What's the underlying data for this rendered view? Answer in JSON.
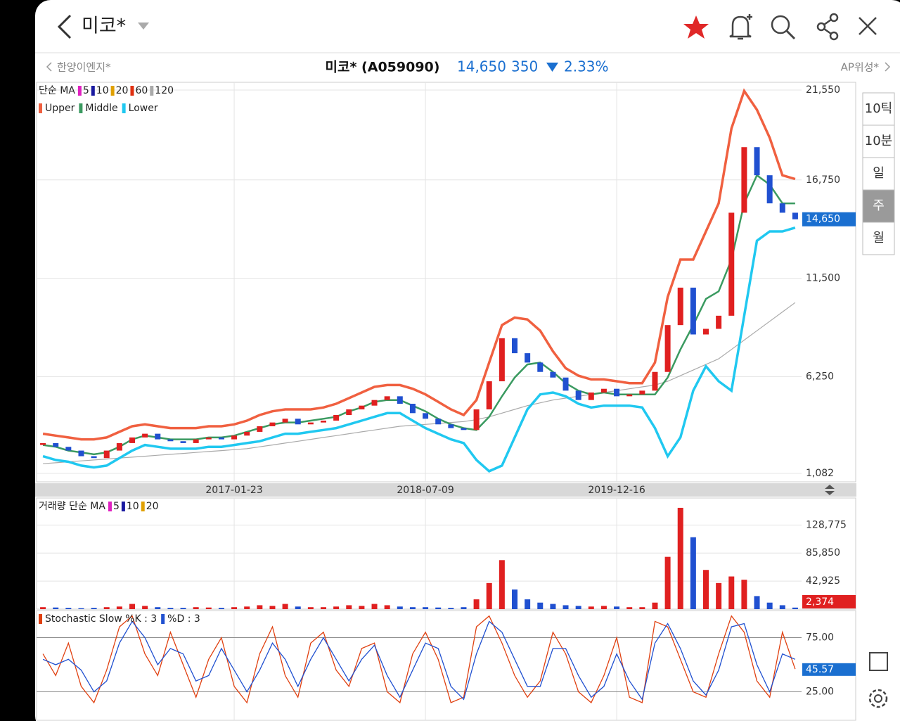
{
  "header": {
    "title": "미코*"
  },
  "quote": {
    "prev": "한양이엔지*",
    "name": "미코* (A059090)",
    "price": "14,650",
    "change": "350",
    "change_pct": "2.33%",
    "next": "AP위성*"
  },
  "periods": [
    "10틱",
    "10분",
    "일",
    "주",
    "월"
  ],
  "price_chart": {
    "type": "candlestick",
    "legend_ma": {
      "label": "단순 MA",
      "items": [
        {
          "name": "5",
          "color": "#e020c0"
        },
        {
          "name": "10",
          "color": "#1a1aa0"
        },
        {
          "name": "20",
          "color": "#e0a000"
        },
        {
          "name": "60",
          "color": "#e03010"
        },
        {
          "name": "120",
          "color": "#aaaaaa"
        }
      ]
    },
    "categories": [
      null,
      null,
      null,
      null,
      null,
      null,
      null,
      null,
      null,
      null,
      null,
      null,
      null,
      null,
      null,
      "2017-01-23",
      null,
      null,
      null,
      null,
      null,
      null,
      null,
      null,
      null,
      null,
      null,
      null,
      null,
      null,
      "2018-07-09",
      null,
      null,
      null,
      null,
      null,
      null,
      null,
      null,
      null,
      null,
      null,
      null,
      null,
      null,
      "2019-12-16",
      null,
      null,
      null,
      null,
      null,
      null,
      null,
      null,
      null,
      null,
      null,
      null,
      null,
      null
    ],
    "opens": [
      2600,
      2700,
      2500,
      2300,
      2000,
      1900,
      2300,
      2700,
      3000,
      3200,
      2900,
      2800,
      2700,
      2900,
      3000,
      2900,
      3100,
      3300,
      3600,
      3800,
      4000,
      3700,
      3800,
      3900,
      4200,
      4500,
      4700,
      5000,
      5200,
      4800,
      4300,
      4000,
      3700,
      3500,
      3400,
      4500,
      6000,
      8300,
      7500,
      7000,
      6500,
      6200,
      5500,
      5000,
      5400,
      5600,
      5200,
      5300,
      5500,
      6500,
      9000,
      11000,
      8500,
      8800,
      9500,
      15000,
      18500,
      17000,
      15500,
      15000
    ],
    "closes": [
      2700,
      2500,
      2300,
      2000,
      1900,
      2300,
      2700,
      3000,
      3200,
      2900,
      2800,
      2700,
      2900,
      3000,
      2900,
      3100,
      3300,
      3600,
      3800,
      4000,
      3700,
      3800,
      3900,
      4200,
      4500,
      4700,
      5000,
      5200,
      4800,
      4300,
      4000,
      3700,
      3500,
      3400,
      4500,
      6000,
      8300,
      7500,
      7000,
      6500,
      6200,
      5500,
      5000,
      5400,
      5600,
      5200,
      5300,
      5500,
      6500,
      9000,
      11000,
      8500,
      8800,
      9500,
      15000,
      18500,
      17000,
      15500,
      15000,
      14650
    ],
    "up_color": "#e02020",
    "down_color": "#2050d0",
    "series": [
      {
        "name": "Upper",
        "color": "#f06040",
        "values": [
          3200,
          3100,
          3000,
          2900,
          2900,
          3000,
          3300,
          3600,
          3700,
          3600,
          3500,
          3500,
          3500,
          3600,
          3600,
          3700,
          3900,
          4200,
          4400,
          4500,
          4500,
          4500,
          4600,
          4800,
          5100,
          5400,
          5700,
          5800,
          5800,
          5600,
          5300,
          4900,
          4500,
          4200,
          5000,
          7000,
          9000,
          9400,
          9300,
          8700,
          7600,
          6700,
          6300,
          6100,
          6100,
          6000,
          5900,
          5900,
          7000,
          10500,
          12500,
          12500,
          14000,
          15500,
          19500,
          21500,
          20500,
          19000,
          17000,
          16800
        ]
      },
      {
        "name": "Middle",
        "color": "#3a9a60",
        "values": [
          2600,
          2500,
          2300,
          2200,
          2100,
          2200,
          2500,
          2900,
          3100,
          3000,
          2900,
          2900,
          2900,
          3000,
          3000,
          3100,
          3300,
          3500,
          3700,
          3800,
          3800,
          3900,
          4000,
          4100,
          4400,
          4600,
          4900,
          5000,
          5000,
          4700,
          4400,
          4000,
          3700,
          3500,
          3400,
          4100,
          5200,
          6200,
          6900,
          7000,
          6500,
          5900,
          5500,
          5300,
          5400,
          5300,
          5300,
          5300,
          5300,
          6200,
          7700,
          9000,
          10400,
          10800,
          12500,
          15500,
          17000,
          16500,
          15500,
          15500
        ]
      },
      {
        "name": "Lower",
        "color": "#20c8f0",
        "values": [
          2000,
          1800,
          1700,
          1500,
          1400,
          1500,
          1900,
          2300,
          2600,
          2500,
          2400,
          2400,
          2400,
          2500,
          2500,
          2600,
          2700,
          2800,
          3000,
          3200,
          3200,
          3300,
          3400,
          3500,
          3700,
          3900,
          4100,
          4300,
          4300,
          3900,
          3500,
          3200,
          2900,
          2700,
          1800,
          1200,
          1500,
          3000,
          4500,
          5300,
          5400,
          5200,
          4800,
          4600,
          4700,
          4700,
          4700,
          4600,
          3500,
          2000,
          3000,
          5500,
          6800,
          6000,
          5500,
          9500,
          13500,
          14000,
          14000,
          14200
        ]
      }
    ],
    "ma120": [
      1600,
      1650,
      1700,
      1750,
      1800,
      1850,
      1900,
      1950,
      2000,
      2050,
      2100,
      2150,
      2200,
      2250,
      2300,
      2350,
      2400,
      2500,
      2600,
      2700,
      2800,
      2900,
      3000,
      3100,
      3200,
      3300,
      3400,
      3500,
      3600,
      3650,
      3700,
      3750,
      3800,
      3850,
      3950,
      4100,
      4300,
      4500,
      4700,
      4850,
      5000,
      5100,
      5200,
      5300,
      5400,
      5500,
      5600,
      5700,
      5800,
      6000,
      6300,
      6600,
      6900,
      7200,
      7700,
      8200,
      8700,
      9200,
      9700,
      10200
    ],
    "ylim": [
      1082,
      21550
    ],
    "yticks": [
      {
        "value": 21550,
        "label": "21,550"
      },
      {
        "value": 16750,
        "label": "16,750"
      },
      {
        "value": 11500,
        "label": "11,500"
      },
      {
        "value": 6250,
        "label": "6,250"
      },
      {
        "value": 1082,
        "label": "1,082"
      }
    ],
    "last": {
      "value": 14650,
      "label": "14,650"
    }
  },
  "volume_chart": {
    "type": "bar",
    "legend_ma": {
      "label": "거래량 단순 MA",
      "items": [
        {
          "name": "5",
          "color": "#e020c0"
        },
        {
          "name": "10",
          "color": "#1a1aa0"
        },
        {
          "name": "20",
          "color": "#e0a000"
        }
      ]
    },
    "values": [
      3000,
      2500,
      2000,
      1500,
      2000,
      3000,
      4000,
      8000,
      5000,
      3000,
      2000,
      2000,
      3000,
      2500,
      2000,
      3000,
      4000,
      6000,
      5000,
      8000,
      4000,
      3000,
      3000,
      4000,
      6000,
      5000,
      8000,
      6000,
      4000,
      3000,
      3000,
      2500,
      2000,
      3000,
      15000,
      40000,
      75000,
      30000,
      15000,
      10000,
      8000,
      6000,
      5000,
      4000,
      5000,
      4000,
      3000,
      3000,
      10000,
      80000,
      155000,
      110000,
      60000,
      40000,
      50000,
      45000,
      20000,
      10000,
      6000,
      2374
    ],
    "ylim": [
      0,
      170000
    ],
    "yticks": [
      {
        "value": 128775,
        "label": "128,775"
      },
      {
        "value": 85850,
        "label": "85,850"
      },
      {
        "value": 42925,
        "label": "42,925"
      }
    ],
    "last": {
      "value": 2374,
      "label": "2,374"
    }
  },
  "stoch_chart": {
    "type": "line",
    "series": [
      {
        "name": "Stochastic Slow %K : 3",
        "color": "#e04010",
        "values": [
          60,
          40,
          70,
          30,
          15,
          45,
          85,
          95,
          60,
          40,
          80,
          50,
          20,
          55,
          75,
          30,
          15,
          60,
          85,
          40,
          20,
          70,
          80,
          45,
          30,
          65,
          70,
          25,
          15,
          60,
          80,
          55,
          15,
          20,
          85,
          95,
          70,
          40,
          20,
          35,
          80,
          60,
          25,
          15,
          40,
          75,
          20,
          15,
          90,
          85,
          55,
          25,
          20,
          60,
          95,
          80,
          35,
          20,
          80,
          46
        ]
      },
      {
        "name": "%D : 3",
        "color": "#2050d0",
        "values": [
          55,
          50,
          55,
          45,
          25,
          35,
          70,
          90,
          75,
          50,
          65,
          60,
          35,
          40,
          65,
          45,
          25,
          45,
          70,
          55,
          30,
          55,
          75,
          55,
          35,
          55,
          68,
          40,
          20,
          45,
          70,
          65,
          30,
          18,
          60,
          90,
          80,
          55,
          30,
          30,
          65,
          65,
          40,
          20,
          30,
          60,
          35,
          18,
          70,
          88,
          65,
          35,
          22,
          45,
          85,
          88,
          50,
          25,
          60,
          55
        ]
      }
    ],
    "ylim": [
      0,
      100
    ],
    "yticks": [
      {
        "value": 75,
        "label": "75.00"
      },
      {
        "value": 25,
        "label": "25.00"
      }
    ],
    "last": {
      "value": 45.57,
      "label": "45.57"
    }
  }
}
